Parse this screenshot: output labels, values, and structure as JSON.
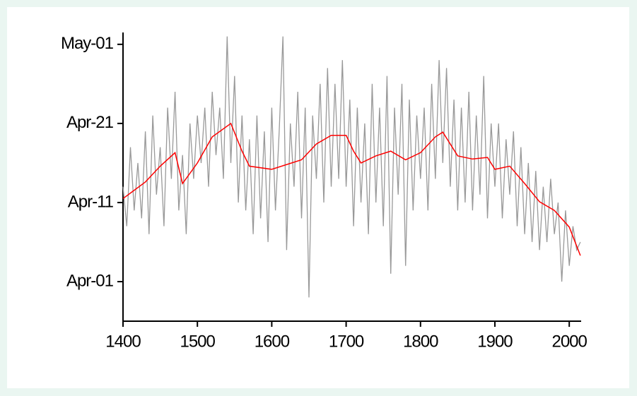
{
  "chart_data": {
    "type": "line",
    "xlim": [
      1400,
      2016
    ],
    "xticks": [
      1400,
      1500,
      1600,
      1700,
      1800,
      1900,
      2000
    ],
    "ylim": [
      86,
      122.5
    ],
    "yticks": [
      {
        "value": 91,
        "label": "Apr-01"
      },
      {
        "value": 101,
        "label": "Apr-11"
      },
      {
        "value": 111,
        "label": "Apr-21"
      },
      {
        "value": 121,
        "label": "May-01"
      }
    ],
    "grid": false,
    "series": [
      {
        "color": "#999999",
        "x": [
          1400,
          1405,
          1410,
          1415,
          1420,
          1425,
          1430,
          1435,
          1440,
          1445,
          1450,
          1455,
          1460,
          1465,
          1470,
          1475,
          1480,
          1485,
          1490,
          1495,
          1500,
          1505,
          1510,
          1515,
          1520,
          1525,
          1530,
          1535,
          1540,
          1545,
          1550,
          1555,
          1560,
          1565,
          1570,
          1575,
          1580,
          1585,
          1590,
          1595,
          1600,
          1605,
          1610,
          1615,
          1620,
          1625,
          1630,
          1635,
          1640,
          1645,
          1650,
          1655,
          1660,
          1665,
          1670,
          1675,
          1680,
          1685,
          1690,
          1695,
          1700,
          1705,
          1710,
          1715,
          1720,
          1725,
          1730,
          1735,
          1740,
          1745,
          1750,
          1755,
          1760,
          1765,
          1770,
          1775,
          1780,
          1785,
          1790,
          1795,
          1800,
          1805,
          1810,
          1815,
          1820,
          1825,
          1830,
          1835,
          1840,
          1845,
          1850,
          1855,
          1860,
          1865,
          1870,
          1875,
          1880,
          1885,
          1890,
          1895,
          1900,
          1905,
          1910,
          1915,
          1920,
          1925,
          1930,
          1935,
          1940,
          1945,
          1950,
          1955,
          1960,
          1965,
          1970,
          1975,
          1980,
          1985,
          1990,
          1995,
          2000,
          2005,
          2010,
          2015
        ],
        "values": [
          103,
          98,
          108,
          100,
          106,
          99,
          110,
          97,
          112,
          102,
          108,
          98,
          113,
          104,
          115,
          100,
          107,
          97,
          111,
          104,
          112,
          106,
          113,
          103,
          115,
          107,
          113,
          104,
          122,
          106,
          117,
          101,
          112,
          100,
          109,
          97,
          112,
          99,
          110,
          96,
          113,
          100,
          110,
          122,
          95,
          111,
          103,
          115,
          99,
          113,
          89,
          112,
          104,
          116,
          101,
          118,
          103,
          116,
          104,
          119,
          103,
          114,
          98,
          113,
          101,
          111,
          97,
          116,
          101,
          113,
          98,
          117,
          92,
          113,
          102,
          116,
          93,
          114,
          100,
          112,
          104,
          113,
          100,
          116,
          104,
          119,
          106,
          118,
          103,
          114,
          100,
          113,
          101,
          115,
          100,
          112,
          102,
          117,
          99,
          111,
          103,
          111,
          99,
          109,
          102,
          110,
          98,
          108,
          97,
          106,
          96,
          105,
          95,
          103,
          96,
          104,
          97,
          101,
          91,
          100,
          93,
          98,
          95,
          96
        ]
      },
      {
        "color": "#ff0000",
        "x": [
          1400,
          1410,
          1430,
          1450,
          1470,
          1480,
          1500,
          1520,
          1545,
          1560,
          1570,
          1600,
          1620,
          1640,
          1660,
          1680,
          1700,
          1710,
          1720,
          1740,
          1760,
          1780,
          1800,
          1820,
          1830,
          1850,
          1870,
          1890,
          1900,
          1920,
          1940,
          1960,
          1980,
          2000,
          2015
        ],
        "values": [
          101.5,
          102.2,
          103.6,
          105.6,
          107.3,
          103.4,
          106,
          109.3,
          111,
          107.5,
          105.6,
          105.2,
          105.8,
          106.4,
          108.4,
          109.5,
          109.5,
          107.5,
          106,
          106.9,
          107.5,
          106.4,
          107.3,
          109.3,
          109.9,
          106.9,
          106.5,
          106.7,
          105.2,
          105.6,
          103.4,
          101.1,
          100,
          97.9,
          94.3
        ]
      }
    ]
  }
}
